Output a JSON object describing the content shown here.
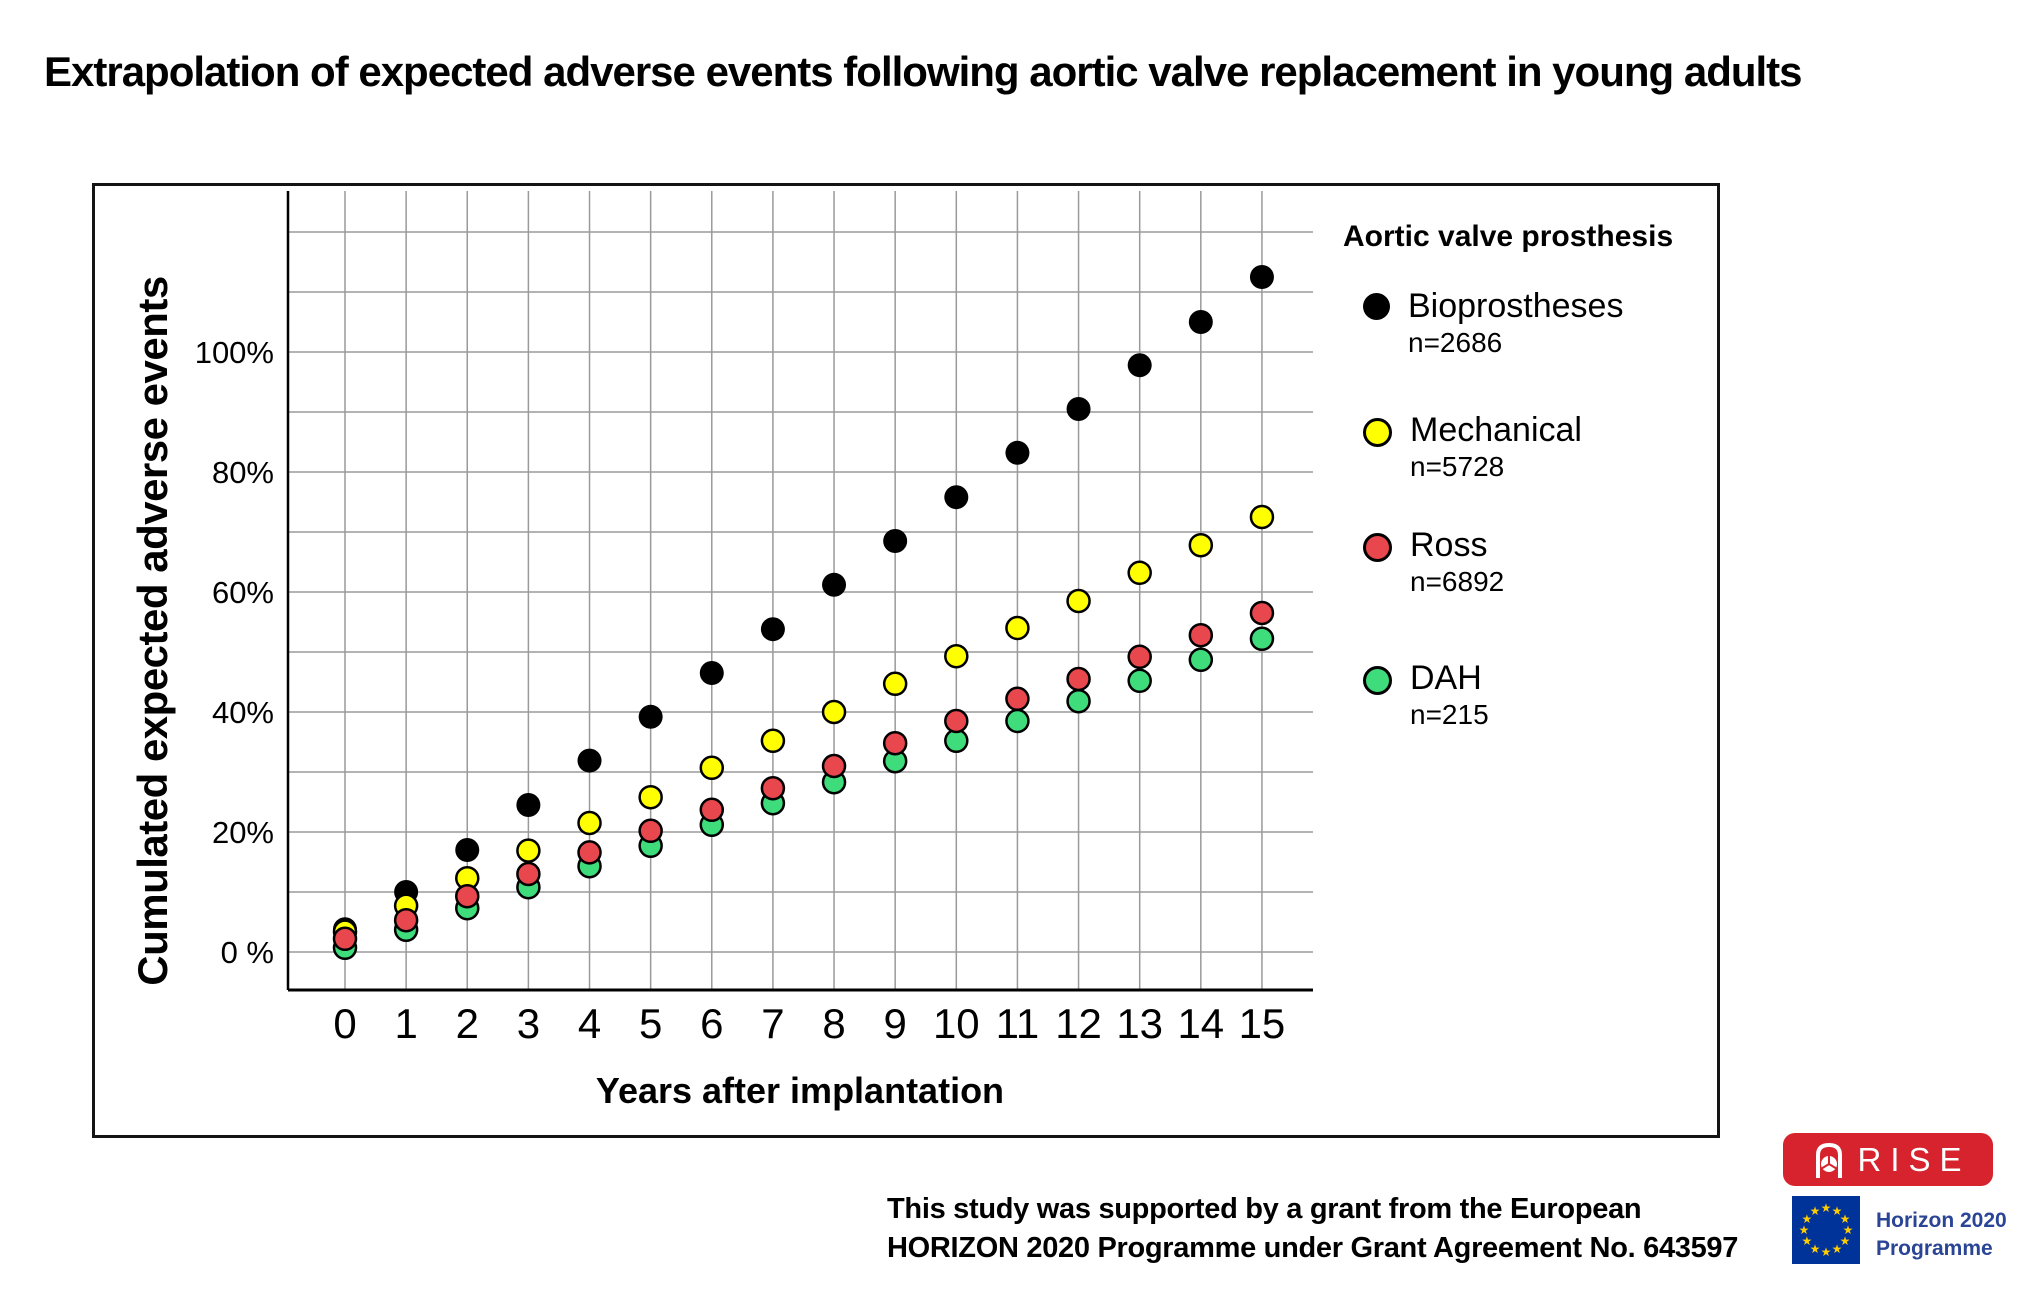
{
  "title": "Extrapolation of expected adverse events following aortic valve replacement in young adults",
  "chart_data": {
    "type": "scatter",
    "x": [
      0,
      1,
      2,
      3,
      4,
      5,
      6,
      7,
      8,
      9,
      10,
      11,
      12,
      13,
      14,
      15
    ],
    "x_tick_labels": [
      "0",
      "1",
      "2",
      "3",
      "4",
      "5",
      "6",
      "7",
      "8",
      "9",
      "10",
      "11",
      "12",
      "13",
      "14",
      "15"
    ],
    "y_ticks": [
      {
        "value": 0,
        "label": "0 %"
      },
      {
        "value": 20,
        "label": "20%"
      },
      {
        "value": 40,
        "label": "40%"
      },
      {
        "value": 60,
        "label": "60%"
      },
      {
        "value": 80,
        "label": "80%"
      },
      {
        "value": 100,
        "label": "100%"
      }
    ],
    "xlabel": "Years after implantation",
    "ylabel": "Cumulated expected adverse events",
    "xlim": [
      -0.95,
      15.8
    ],
    "ylim": [
      -6.5,
      127
    ],
    "grid": true,
    "grid_step_percent": 10,
    "legend_position": "right",
    "legend_title": "Aortic valve prosthesis",
    "series": [
      {
        "name": "Bioprostheses",
        "n_label": "n=2686",
        "color": "#000000",
        "values": [
          3.8,
          10.0,
          17.0,
          24.5,
          31.9,
          39.2,
          46.5,
          53.8,
          61.2,
          68.5,
          75.8,
          83.2,
          90.5,
          97.8,
          105.0,
          112.5
        ]
      },
      {
        "name": "Mechanical",
        "n_label": "n=5728",
        "color": "#ffff00",
        "values": [
          3.4,
          7.7,
          12.3,
          16.9,
          21.5,
          25.8,
          30.7,
          35.2,
          40.0,
          44.7,
          49.3,
          54.0,
          58.5,
          63.2,
          67.8,
          72.5
        ]
      },
      {
        "name": "Ross",
        "n_label": "n=6892",
        "color": "#e8484d",
        "values": [
          2.2,
          5.3,
          9.3,
          13.0,
          16.6,
          20.2,
          23.7,
          27.3,
          31.0,
          34.8,
          38.5,
          42.2,
          45.5,
          49.2,
          52.8,
          56.5
        ]
      },
      {
        "name": "DAH",
        "n_label": "n=215",
        "color": "#3edc7a",
        "values": [
          0.7,
          3.7,
          7.3,
          10.8,
          14.3,
          17.7,
          21.2,
          24.8,
          28.3,
          31.8,
          35.2,
          38.5,
          41.8,
          45.2,
          48.7,
          52.2
        ]
      }
    ]
  },
  "footer": {
    "line1": "This study was supported by a grant from the European",
    "line2": "HORIZON 2020 Programme under Grant Agreement No. 643597"
  },
  "logos": {
    "rise_label": "RISE",
    "horizon_line1": "Horizon 2020",
    "horizon_line2": "Programme",
    "rise_bg": "#d6232e",
    "eu_blue": "#003399",
    "eu_star_color": "#ffcc00"
  }
}
